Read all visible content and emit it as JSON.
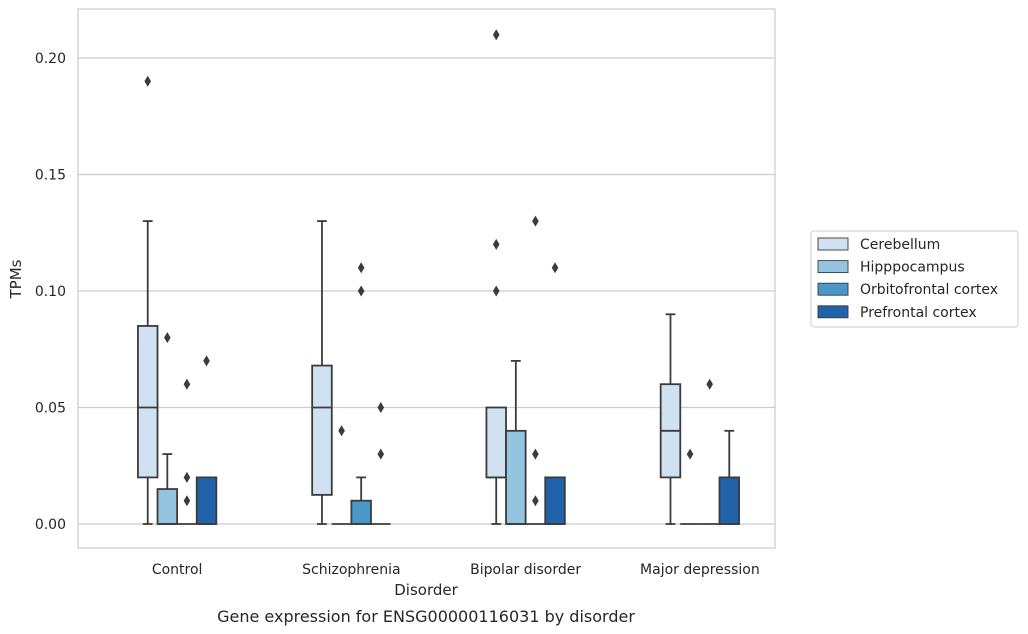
{
  "caption": "Gene expression for ENSG00000116031 by disorder",
  "chart_data": {
    "type": "box",
    "xlabel": "Disorder",
    "ylabel": "TPMs",
    "ylim": [
      -0.01,
      0.221
    ],
    "yticks": [
      0.0,
      0.05,
      0.1,
      0.15,
      0.2
    ],
    "ytick_labels": [
      "0.00",
      "0.05",
      "0.10",
      "0.15",
      "0.20"
    ],
    "grid": "horizontal",
    "legend_position": "right",
    "categories": [
      "Control",
      "Schizophrenia",
      "Bipolar disorder",
      "Major depression"
    ],
    "series": [
      {
        "name": "Cerebellum",
        "color": "#d0e1f2",
        "boxes": [
          {
            "whisker_low": 0.0,
            "q1": 0.02,
            "median": 0.05,
            "q3": 0.085,
            "whisker_high": 0.13,
            "outliers": [
              0.19
            ]
          },
          {
            "whisker_low": 0.0,
            "q1": 0.0125,
            "median": 0.05,
            "q3": 0.068,
            "whisker_high": 0.13,
            "outliers": []
          },
          {
            "whisker_low": 0.0,
            "q1": 0.02,
            "median": 0.02,
            "q3": 0.05,
            "whisker_high": 0.05,
            "outliers": [
              0.1,
              0.12,
              0.21
            ]
          },
          {
            "whisker_low": 0.0,
            "q1": 0.02,
            "median": 0.04,
            "q3": 0.06,
            "whisker_high": 0.09,
            "outliers": []
          }
        ]
      },
      {
        "name": "Hipppocampus",
        "color": "#94c4df",
        "boxes": [
          {
            "whisker_low": 0.0,
            "q1": 0.0,
            "median": 0.0,
            "q3": 0.015,
            "whisker_high": 0.03,
            "outliers": [
              0.08
            ]
          },
          {
            "whisker_low": 0.0,
            "q1": 0.0,
            "median": 0.0,
            "q3": 0.0,
            "whisker_high": 0.0,
            "outliers": [
              0.04
            ]
          },
          {
            "whisker_low": 0.0,
            "q1": 0.0,
            "median": 0.0,
            "q3": 0.04,
            "whisker_high": 0.07,
            "outliers": []
          },
          {
            "whisker_low": 0.0,
            "q1": 0.0,
            "median": 0.0,
            "q3": 0.0,
            "whisker_high": 0.0,
            "outliers": [
              0.03
            ]
          }
        ]
      },
      {
        "name": "Orbitofrontal cortex",
        "color": "#4a98c9",
        "boxes": [
          {
            "whisker_low": 0.0,
            "q1": 0.0,
            "median": 0.0,
            "q3": 0.0,
            "whisker_high": 0.0,
            "outliers": [
              0.01,
              0.02,
              0.06
            ]
          },
          {
            "whisker_low": 0.0,
            "q1": 0.0,
            "median": 0.0,
            "q3": 0.01,
            "whisker_high": 0.02,
            "outliers": [
              0.1,
              0.11
            ]
          },
          {
            "whisker_low": 0.0,
            "q1": 0.0,
            "median": 0.0,
            "q3": 0.0,
            "whisker_high": 0.0,
            "outliers": [
              0.01,
              0.03,
              0.13
            ]
          },
          {
            "whisker_low": 0.0,
            "q1": 0.0,
            "median": 0.0,
            "q3": 0.0,
            "whisker_high": 0.0,
            "outliers": [
              0.06
            ]
          }
        ]
      },
      {
        "name": "Prefrontal cortex",
        "color": "#2163aa",
        "boxes": [
          {
            "whisker_low": 0.0,
            "q1": 0.0,
            "median": 0.0,
            "q3": 0.02,
            "whisker_high": 0.02,
            "outliers": [
              0.07
            ]
          },
          {
            "whisker_low": 0.0,
            "q1": 0.0,
            "median": 0.0,
            "q3": 0.0,
            "whisker_high": 0.0,
            "outliers": [
              0.03,
              0.05
            ]
          },
          {
            "whisker_low": 0.0,
            "q1": 0.0,
            "median": 0.0,
            "q3": 0.02,
            "whisker_high": 0.02,
            "outliers": [
              0.11
            ]
          },
          {
            "whisker_low": 0.0,
            "q1": 0.0,
            "median": 0.0,
            "q3": 0.02,
            "whisker_high": 0.04,
            "outliers": []
          }
        ]
      }
    ]
  }
}
